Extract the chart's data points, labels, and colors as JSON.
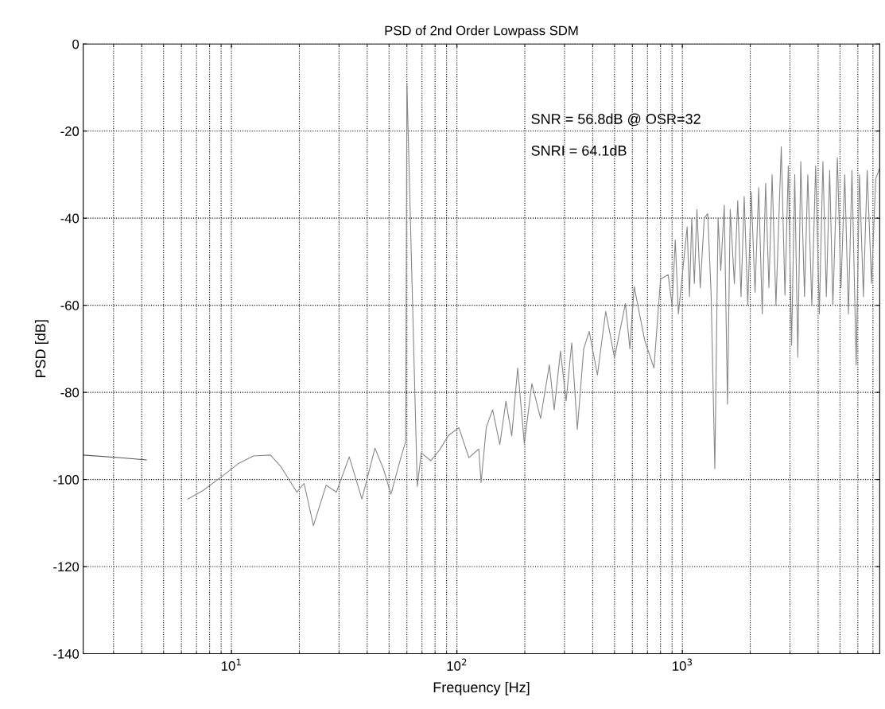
{
  "chart_data": {
    "type": "line",
    "title": "PSD of 2nd Order Lowpass SDM",
    "xlabel": "Frequency [Hz]",
    "ylabel": "PSD [dB]",
    "annotations": [
      "SNR = 56.8dB @ OSR=32",
      "SNRI = 64.1dB"
    ],
    "log": "x",
    "grid": true,
    "marker": "none",
    "line_style": "solid",
    "xlim": [
      2.2,
      7500
    ],
    "ylim": [
      -140,
      0
    ],
    "xticks": [
      {
        "value": 10,
        "label": "10$^{1}$"
      },
      {
        "value": 100,
        "label": "10$^{2}$"
      },
      {
        "value": 1000,
        "label": "10$^{3}$"
      }
    ],
    "yticks": [
      -140,
      -120,
      -100,
      -80,
      -60,
      -40,
      -20,
      0
    ],
    "series": [
      {
        "color": "#555555",
        "x": [
          2.2,
          3.23,
          4.2
        ],
        "values": [
          -94.4,
          -95,
          -95.5
        ]
      },
      {
        "color": "#888888",
        "x": [
          6.4,
          7.5,
          9.45,
          10.7,
          12.5,
          14.9,
          16.6,
          19.5,
          21,
          23.1,
          26.3,
          29.2,
          33.3,
          37.9,
          43.3,
          47.3,
          51,
          55.9,
          59.3,
          60,
          66.7,
          69.5,
          76.5,
          83.8,
          91.7,
          102,
          113,
          125,
          128,
          135,
          144,
          155,
          165,
          175,
          186,
          199,
          215,
          235,
          257,
          270,
          288,
          305,
          323,
          342,
          365,
          386,
          420,
          457,
          500,
          559,
          585,
          611,
          680,
          748,
          800,
          865,
          900,
          930,
          960,
          1050,
          1075,
          1100,
          1130,
          1160,
          1200,
          1250,
          1295,
          1340,
          1393,
          1440,
          1480,
          1534,
          1585,
          1630,
          1700,
          1760,
          1820,
          1880,
          1950,
          2020,
          2100,
          2180,
          2260,
          2340,
          2420,
          2500,
          2600,
          2745,
          2850,
          2950,
          3050,
          3150,
          3250,
          3350,
          3480,
          3600,
          3750,
          3900,
          4050,
          4200,
          4350,
          4500,
          4650,
          4870,
          5050,
          5250,
          5450,
          5650,
          5900,
          6100,
          6350,
          6600,
          6900,
          7200,
          7490
        ],
        "values": [
          -104.5,
          -102.5,
          -98.6,
          -96.4,
          -94.6,
          -94.4,
          -97.1,
          -102.9,
          -100.9,
          -110.6,
          -101.3,
          -102.9,
          -94.8,
          -104.5,
          -92.8,
          -97.7,
          -103.4,
          -95.7,
          -91.2,
          -9,
          -101.6,
          -93.9,
          -95.7,
          -93.2,
          -89.9,
          -88.1,
          -95,
          -93,
          -100.7,
          -88,
          -84,
          -92,
          -82,
          -90,
          -74.4,
          -91.7,
          -78,
          -86,
          -73.7,
          -84,
          -70.5,
          -82,
          -68.6,
          -88.5,
          -70,
          -66,
          -76,
          -61.4,
          -72,
          -59.6,
          -70,
          -55.7,
          -68,
          -74.4,
          -54,
          -53,
          -60,
          -45,
          -62,
          -42,
          -58,
          -40,
          -55,
          -38,
          -56,
          -40,
          -39,
          -57,
          -97.5,
          -40,
          -52,
          -37,
          -82.7,
          -38,
          -55,
          -36,
          -58,
          -35,
          -60,
          -34,
          -57,
          -33,
          -62,
          -32,
          -56,
          -30,
          -60,
          -23.6,
          -57.7,
          -28,
          -69.2,
          -30,
          -71.9,
          -27,
          -58,
          -30,
          -60,
          -28,
          -62,
          -27,
          -58,
          -29,
          -60,
          -26.1,
          -56,
          -30,
          -62,
          -29,
          -73.7,
          -30,
          -58,
          -29,
          -55,
          -31,
          -28.6
        ]
      }
    ]
  }
}
